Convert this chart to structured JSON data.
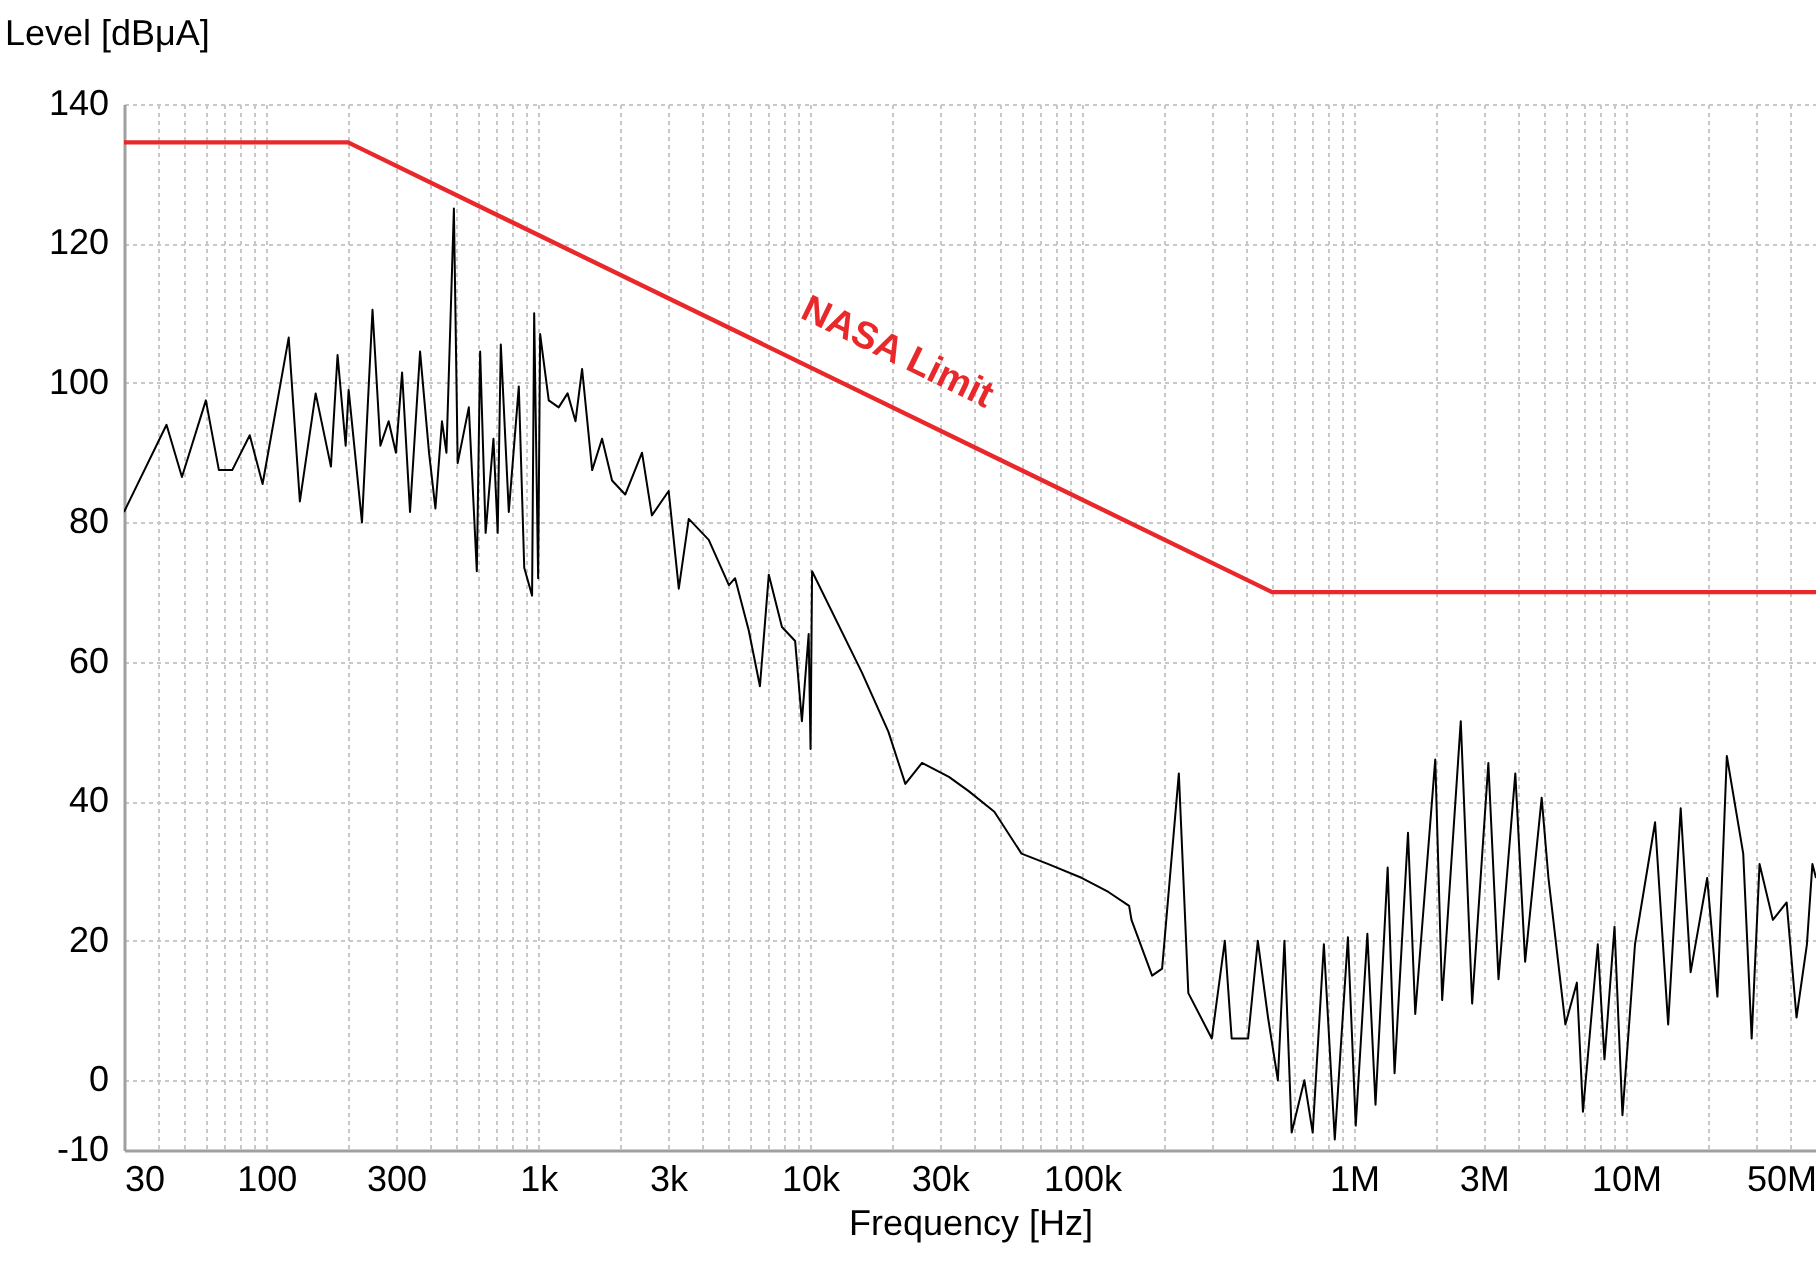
{
  "chart_data": {
    "type": "line",
    "xlabel": "Frequency [Hz]",
    "ylabel": "Level [dBμA]",
    "log": "x",
    "grid": true,
    "xlim": [
      30,
      50000000
    ],
    "ylim": [
      -10,
      140
    ],
    "yticks": [
      -10,
      0,
      20,
      40,
      60,
      80,
      100,
      120,
      140
    ],
    "xticks": [
      30,
      {
        "value": 40,
        "label": null
      },
      {
        "value": 50,
        "label": null
      },
      {
        "value": 60,
        "label": null
      },
      {
        "value": 70,
        "label": null
      },
      {
        "value": 80,
        "label": null
      },
      {
        "value": 90,
        "label": null
      },
      100,
      {
        "value": 200,
        "label": null
      },
      300,
      {
        "value": 400,
        "label": null
      },
      {
        "value": 500,
        "label": null
      },
      {
        "value": 600,
        "label": null
      },
      {
        "value": 700,
        "label": null
      },
      {
        "value": 800,
        "label": null
      },
      {
        "value": 900,
        "label": null
      },
      {
        "value": 1000,
        "label": "1k"
      },
      {
        "value": 2000,
        "label": null
      },
      {
        "value": 3000,
        "label": "3k"
      },
      {
        "value": 4000,
        "label": null
      },
      {
        "value": 5000,
        "label": null
      },
      {
        "value": 6000,
        "label": null
      },
      {
        "value": 7000,
        "label": null
      },
      {
        "value": 8000,
        "label": null
      },
      {
        "value": 9000,
        "label": null
      },
      {
        "value": 10000,
        "label": "10k"
      },
      {
        "value": 20000,
        "label": null
      },
      {
        "value": 30000,
        "label": "30k"
      },
      {
        "value": 40000,
        "label": null
      },
      {
        "value": 50000,
        "label": null
      },
      {
        "value": 60000,
        "label": null
      },
      {
        "value": 70000,
        "label": null
      },
      {
        "value": 80000,
        "label": null
      },
      {
        "value": 90000,
        "label": null
      },
      {
        "value": 100000,
        "label": "100k"
      },
      {
        "value": 200000,
        "label": null
      },
      {
        "value": 300000,
        "label": null
      },
      {
        "value": 400000,
        "label": null
      },
      {
        "value": 500000,
        "label": null
      },
      {
        "value": 600000,
        "label": null
      },
      {
        "value": 700000,
        "label": null
      },
      {
        "value": 800000,
        "label": null
      },
      {
        "value": 900000,
        "label": null
      },
      {
        "value": 1000000,
        "label": "1M"
      },
      {
        "value": 2000000,
        "label": null
      },
      {
        "value": 3000000,
        "label": "3M"
      },
      {
        "value": 4000000,
        "label": null
      },
      {
        "value": 5000000,
        "label": null
      },
      {
        "value": 6000000,
        "label": null
      },
      {
        "value": 7000000,
        "label": null
      },
      {
        "value": 8000000,
        "label": null
      },
      {
        "value": 9000000,
        "label": null
      },
      {
        "value": 10000000,
        "label": "10M"
      },
      {
        "value": 20000000,
        "label": null
      },
      {
        "value": 30000000,
        "label": null
      },
      {
        "value": 40000000,
        "label": null
      },
      {
        "value": 50000000,
        "label": "50M"
      }
    ],
    "series": [
      {
        "color": "#000000",
        "x": [
          30,
          43,
          49,
          60,
          67,
          75,
          87,
          97,
          121,
          133,
          152,
          173,
          183,
          196,
          201,
          225,
          246,
          263,
          282,
          300,
          316,
          338,
          368,
          397,
          419,
          443,
          460,
          490,
          506,
          556,
          595,
          612,
          641,
          685,
          710,
          729,
          780,
          849,
          889,
          950,
          967,
          1000,
          1017,
          1094,
          1190,
          1283,
          1372,
          1451,
          1580,
          1718,
          1870,
          2090,
          2410,
          2620,
          3020,
          3290,
          3580,
          4240,
          5030,
          5300,
          5950,
          6540,
          7050,
          7880,
          8810,
          9330,
          9880,
          10040,
          10170,
          15500,
          19400,
          22400,
          25800,
          32400,
          38200,
          47600,
          59900,
          75200,
          100000,
          125000,
          149000,
          152000,
          181000,
          197000,
          227000,
          246000,
          300000,
          335000,
          355000,
          408000,
          443000,
          483000,
          525000,
          555000,
          590000,
          657000,
          705000,
          775000,
          850000,
          950000,
          1015000,
          1120000,
          1200000,
          1330000,
          1410000,
          1580000,
          1680000,
          1990000,
          2110000,
          2470000,
          2720000,
          3120000,
          3400000,
          3920000,
          4260000,
          4900000,
          5190000,
          5990000,
          6600000,
          6950000,
          7880000,
          8340000,
          9080000,
          9710000,
          10800000,
          12800000,
          14300000,
          15900000,
          17300000,
          19900000,
          21700000,
          23500000,
          27000000,
          29000000,
          31000000,
          34700000,
          39000000,
          42400000,
          46300000,
          48500000,
          50000000
        ],
        "values": [
          81.5,
          94,
          86.5,
          97.5,
          87.5,
          87.5,
          92.5,
          85.5,
          106.5,
          83,
          98.5,
          88,
          104,
          91,
          99,
          80,
          110.5,
          91,
          94.5,
          90,
          101.5,
          81.5,
          104.5,
          90,
          82,
          94.5,
          90,
          125,
          88.5,
          96.5,
          73,
          104.5,
          78.5,
          92,
          78.5,
          105.5,
          81.5,
          99.5,
          73.5,
          69.5,
          110,
          72,
          107,
          97.5,
          96.5,
          98.5,
          94.5,
          102,
          87.5,
          92,
          86,
          84,
          90,
          81,
          84.5,
          70.5,
          80.5,
          77.5,
          71,
          72,
          64.5,
          56.5,
          72.5,
          65,
          63,
          51.5,
          64,
          47.5,
          73,
          58.5,
          50,
          42.5,
          45.5,
          43.5,
          41.5,
          38.5,
          32.5,
          31,
          29,
          27,
          25,
          23,
          15,
          16,
          44,
          12.5,
          6,
          20,
          6,
          6,
          20,
          9,
          0,
          20,
          -7.5,
          0,
          -7.5,
          19.5,
          -8.5,
          20.5,
          -6.5,
          21,
          -3.5,
          30.5,
          1,
          35.5,
          9.5,
          46,
          11.5,
          51.5,
          11,
          45.5,
          14.5,
          44,
          17,
          40.5,
          29,
          8,
          14,
          -4.5,
          19.5,
          3,
          22,
          -5,
          19.5,
          37,
          8,
          39,
          15.5,
          29,
          12,
          46.5,
          32.5,
          6,
          31,
          23,
          25.5,
          9,
          19.5,
          31,
          29
        ]
      },
      {
        "name": "NASA Limit",
        "color": "#e8282b",
        "x": [
          30,
          200,
          500000,
          50000000
        ],
        "values": [
          134.5,
          134.5,
          70,
          70
        ]
      }
    ]
  }
}
